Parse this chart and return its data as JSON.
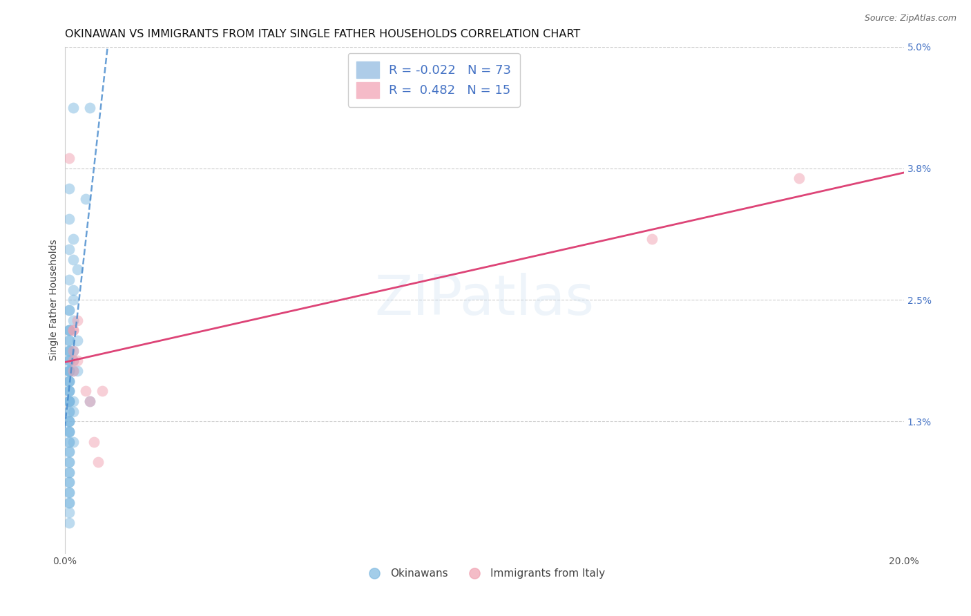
{
  "title": "OKINAWAN VS IMMIGRANTS FROM ITALY SINGLE FATHER HOUSEHOLDS CORRELATION CHART",
  "source": "Source: ZipAtlas.com",
  "ylabel": "Single Father Households",
  "watermark": "ZIPatlas",
  "xlim": [
    0.0,
    0.2
  ],
  "ylim": [
    0.0,
    0.05
  ],
  "ytick_right_labels": [
    "5.0%",
    "3.8%",
    "2.5%",
    "1.3%"
  ],
  "ytick_right_values": [
    0.05,
    0.038,
    0.025,
    0.013
  ],
  "legend_r1": "R = -0.022",
  "legend_n1": "N = 73",
  "legend_r2": "R =  0.482",
  "legend_n2": "N = 15",
  "okinawan_color": "#7db8e0",
  "italy_color": "#f0a0b0",
  "line_okinawan_color": "#4488cc",
  "line_italy_color": "#dd4477",
  "background_color": "#ffffff",
  "grid_color": "#cccccc",
  "okinawan_x": [
    0.002,
    0.006,
    0.001,
    0.005,
    0.001,
    0.002,
    0.001,
    0.002,
    0.003,
    0.001,
    0.002,
    0.002,
    0.001,
    0.001,
    0.002,
    0.001,
    0.001,
    0.001,
    0.001,
    0.001,
    0.003,
    0.001,
    0.001,
    0.002,
    0.001,
    0.001,
    0.001,
    0.001,
    0.002,
    0.001,
    0.002,
    0.001,
    0.001,
    0.001,
    0.003,
    0.001,
    0.001,
    0.001,
    0.001,
    0.001,
    0.001,
    0.001,
    0.001,
    0.006,
    0.001,
    0.001,
    0.002,
    0.001,
    0.001,
    0.002,
    0.001,
    0.001,
    0.001,
    0.001,
    0.001,
    0.001,
    0.001,
    0.001,
    0.002,
    0.001,
    0.001,
    0.001,
    0.001,
    0.001,
    0.001,
    0.001,
    0.001,
    0.001,
    0.001,
    0.001,
    0.001,
    0.001,
    0.001
  ],
  "okinawan_y": [
    0.044,
    0.044,
    0.036,
    0.035,
    0.033,
    0.031,
    0.03,
    0.029,
    0.028,
    0.027,
    0.026,
    0.025,
    0.024,
    0.024,
    0.023,
    0.022,
    0.022,
    0.022,
    0.021,
    0.021,
    0.021,
    0.02,
    0.02,
    0.02,
    0.02,
    0.019,
    0.019,
    0.019,
    0.019,
    0.018,
    0.018,
    0.018,
    0.018,
    0.018,
    0.018,
    0.017,
    0.017,
    0.017,
    0.016,
    0.016,
    0.016,
    0.015,
    0.015,
    0.015,
    0.015,
    0.015,
    0.015,
    0.014,
    0.014,
    0.014,
    0.013,
    0.013,
    0.013,
    0.012,
    0.012,
    0.012,
    0.011,
    0.011,
    0.011,
    0.01,
    0.01,
    0.009,
    0.009,
    0.008,
    0.008,
    0.007,
    0.007,
    0.006,
    0.006,
    0.005,
    0.005,
    0.004,
    0.003
  ],
  "italy_x": [
    0.001,
    0.002,
    0.002,
    0.002,
    0.002,
    0.002,
    0.003,
    0.003,
    0.005,
    0.006,
    0.007,
    0.008,
    0.009,
    0.14,
    0.175
  ],
  "italy_y": [
    0.039,
    0.022,
    0.022,
    0.02,
    0.019,
    0.018,
    0.023,
    0.019,
    0.016,
    0.015,
    0.011,
    0.009,
    0.016,
    0.031,
    0.037
  ],
  "title_fontsize": 11.5,
  "axis_fontsize": 10,
  "tick_fontsize": 10,
  "source_fontsize": 9
}
